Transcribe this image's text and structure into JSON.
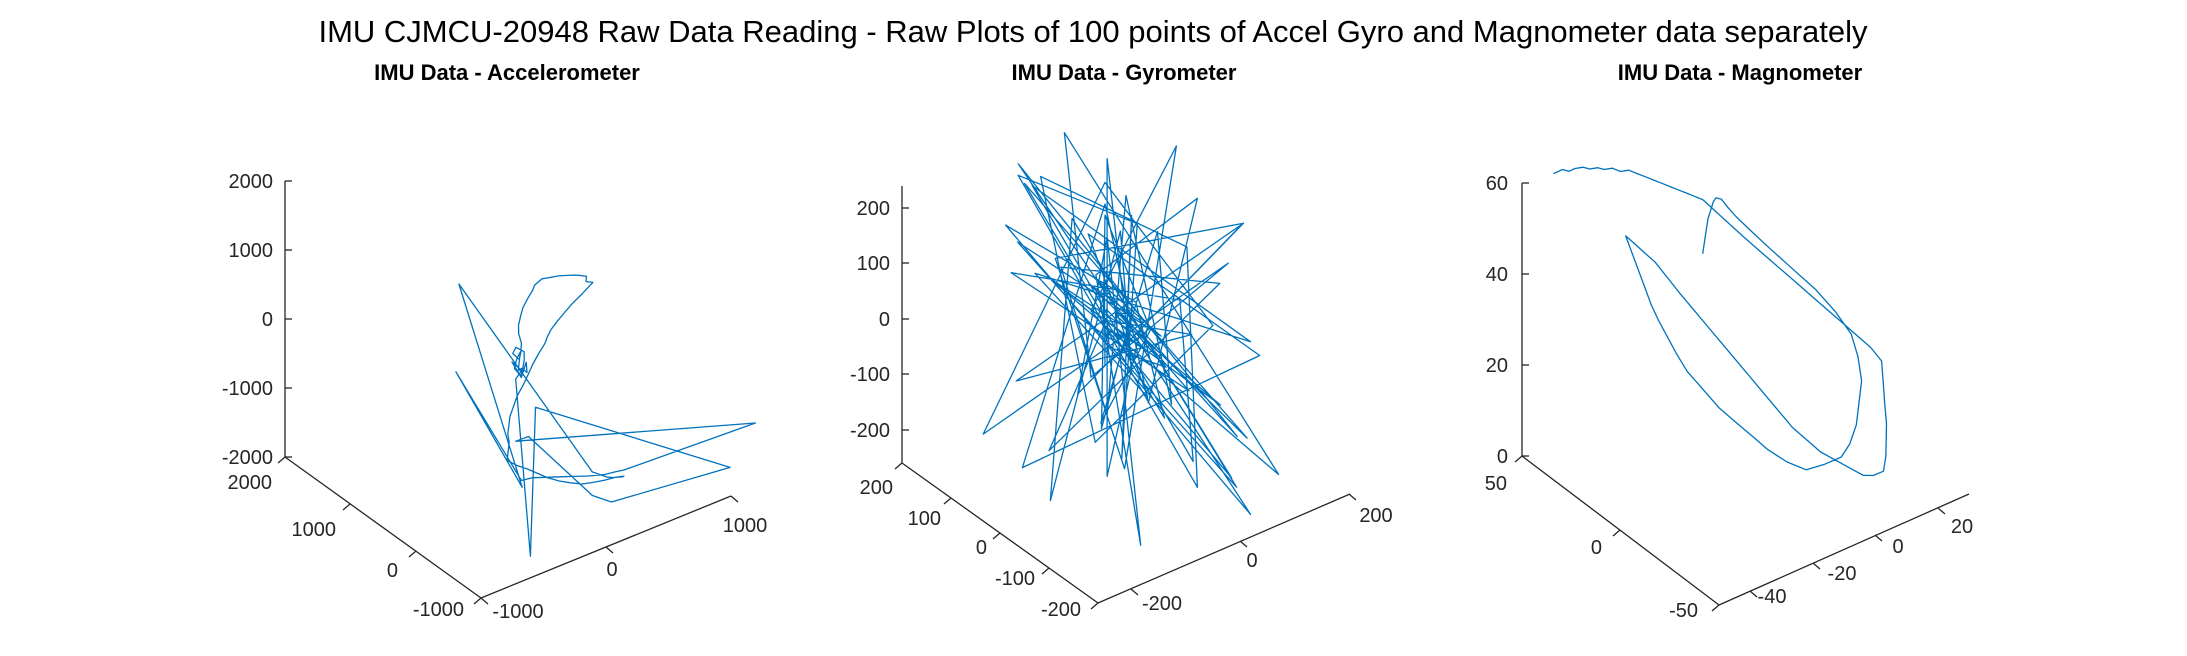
{
  "figure": {
    "title": "IMU CJMCU-20948 Raw Data Reading - Raw Plots of 100 points of Accel Gyro and Magnometer data separately"
  },
  "colors": {
    "series": "#0072BD",
    "axis": "#262626"
  },
  "chart_data": [
    {
      "type": "line",
      "plot_kind": "3d-line",
      "title": "IMU Data - Accelerometer",
      "xlabel": "",
      "ylabel": "",
      "zlabel": "",
      "grid": false,
      "xlim": [
        -1000,
        1000
      ],
      "ylim": [
        -1000,
        2000
      ],
      "zlim": [
        -2000,
        2000
      ],
      "x_ticks": [
        -1000,
        0,
        1000
      ],
      "y_ticks": [
        -1000,
        0,
        1000,
        2000
      ],
      "z_ticks": [
        -2000,
        -1000,
        0,
        1000,
        2000
      ],
      "series": [
        {
          "x": [
            -180,
            -150,
            -120,
            -160,
            -200,
            -170,
            -140,
            -100,
            -80,
            -120,
            -160,
            -130,
            -90,
            -60,
            -40,
            0,
            60,
            120,
            200,
            280,
            340,
            400,
            460,
            520,
            580,
            650,
            720,
            790,
            850,
            900,
            880,
            920,
            860,
            800,
            700,
            620,
            540,
            470,
            420,
            380,
            300,
            220,
            150,
            80,
            0,
            -60,
            -120,
            -160,
            -200,
            -220,
            -260,
            -300,
            -260,
            -200,
            -150,
            -100,
            -40,
            20,
            80,
            140,
            200,
            260,
            300,
            280,
            220,
            180,
            160,
            140,
            120,
            100,
            -550,
            -200,
            -600,
            -180,
            -120,
            -60,
            0,
            60,
            120,
            200,
            260,
            300,
            1300,
            -200,
            -150,
            100,
            150,
            200,
            1150,
            -250,
            -500,
            -200,
            -120,
            -180,
            -220,
            -160,
            -100,
            -120,
            -150,
            -170
          ],
          "y": [
            0,
            40,
            80,
            60,
            20,
            -20,
            10,
            60,
            100,
            150,
            120,
            80,
            130,
            180,
            260,
            340,
            420,
            500,
            580,
            660,
            740,
            800,
            860,
            900,
            940,
            980,
            1000,
            1020,
            1040,
            1020,
            990,
            960,
            930,
            900,
            860,
            820,
            780,
            740,
            700,
            660,
            600,
            540,
            480,
            420,
            360,
            300,
            240,
            180,
            120,
            60,
            0,
            -60,
            -120,
            -180,
            -240,
            -300,
            -360,
            -420,
            -480,
            -540,
            -600,
            -650,
            -700,
            -720,
            -700,
            -680,
            -660,
            -640,
            -620,
            -600,
            200,
            -100,
            150,
            -50,
            -100,
            -200,
            -300,
            -400,
            -500,
            -600,
            -650,
            -700,
            -800,
            0,
            -100,
            -600,
            -650,
            -700,
            -700,
            -400,
            -800,
            0,
            50,
            -30,
            20,
            -10,
            30,
            -20,
            0,
            10
          ],
          "z": [
            0,
            100,
            180,
            120,
            40,
            -60,
            -20,
            60,
            140,
            200,
            160,
            80,
            120,
            200,
            260,
            300,
            340,
            360,
            380,
            380,
            360,
            320,
            280,
            220,
            160,
            100,
            40,
            -20,
            -80,
            -120,
            -160,
            -180,
            -200,
            -220,
            -260,
            -300,
            -340,
            -380,
            -420,
            -460,
            -500,
            -560,
            -620,
            -680,
            -740,
            -800,
            -860,
            -920,
            -980,
            -1040,
            -1100,
            -1160,
            -1220,
            -1280,
            -1340,
            -1400,
            -1450,
            -1480,
            -1500,
            -1480,
            -1450,
            -1420,
            -1400,
            -1380,
            -1360,
            -1340,
            -1320,
            -1300,
            -1280,
            -1260,
            1400,
            -1600,
            200,
            -1550,
            -1520,
            -1490,
            -1460,
            -1430,
            -1400,
            -1370,
            -1340,
            -1310,
            -1300,
            -1000,
            -900,
            -1600,
            -1650,
            -1700,
            -1900,
            -200,
            -1900,
            -100,
            -50,
            50,
            150,
            -100,
            50,
            -50,
            20,
            0
          ]
        }
      ]
    },
    {
      "type": "line",
      "plot_kind": "3d-line",
      "title": "IMU Data - Gyrometer",
      "xlabel": "",
      "ylabel": "",
      "zlabel": "",
      "grid": false,
      "xlim": [
        -300,
        300
      ],
      "ylim": [
        -200,
        200
      ],
      "zlim": [
        -250,
        250
      ],
      "x_ticks": [
        -200,
        0,
        200
      ],
      "y_ticks": [
        -200,
        -100,
        0,
        100,
        200
      ],
      "z_ticks": [
        -200,
        -100,
        0,
        100,
        200
      ],
      "series": [
        {
          "x": [
            0,
            60,
            -80,
            120,
            -140,
            30,
            180,
            -40,
            -120,
            90,
            20,
            -200,
            150,
            -60,
            40,
            200,
            -100,
            -20,
            110,
            -170,
            70,
            10,
            -90,
            160,
            -30,
            50,
            -150,
            130,
            -10,
            80,
            -250,
            0,
            100,
            -60,
            190,
            -120,
            30,
            220,
            -80,
            60,
            -140,
            10,
            170,
            -40,
            90,
            -200,
            120,
            -20,
            40,
            -100,
            250,
            -60,
            20,
            140,
            -180,
            80,
            0,
            -70,
            160,
            -20,
            60,
            -130,
            100,
            30,
            -50,
            210,
            -110,
            40,
            0,
            -160,
            130,
            20,
            -80,
            70,
            -20,
            180,
            -60,
            0,
            90,
            -140,
            50,
            -10,
            120,
            -90,
            30,
            0,
            -40,
            60,
            0,
            -20,
            10,
            30,
            -10,
            0,
            20,
            -30,
            10,
            0,
            -5,
            0
          ],
          "y": [
            0,
            40,
            -60,
            80,
            100,
            -120,
            30,
            140,
            -40,
            -100,
            60,
            120,
            -80,
            20,
            160,
            -140,
            70,
            -30,
            -160,
            100,
            40,
            -70,
            130,
            -110,
            50,
            10,
            -90,
            150,
            -20,
            80,
            -60,
            110,
            -130,
            20,
            60,
            -100,
            170,
            -50,
            30,
            90,
            -150,
            70,
            0,
            -80,
            120,
            40,
            -170,
            60,
            -10,
            100,
            -40,
            140,
            -120,
            10,
            80,
            -60,
            30,
            160,
            -90,
            50,
            -20,
            110,
            -140,
            70,
            0,
            -60,
            130,
            -100,
            40,
            20,
            -80,
            150,
            -30,
            60,
            -110,
            90,
            0,
            -50,
            120,
            -70,
            30,
            10,
            -90,
            70,
            -20,
            40,
            0,
            -30,
            20,
            0,
            10,
            -10,
            5,
            0,
            -5,
            10,
            0,
            -5,
            0,
            0
          ],
          "z": [
            0,
            180,
            -150,
            120,
            280,
            -200,
            90,
            220,
            -120,
            60,
            240,
            -180,
            140,
            -60,
            260,
            -220,
            100,
            40,
            -250,
            200,
            20,
            -100,
            230,
            -160,
            80,
            10,
            -140,
            190,
            -40,
            120,
            -170,
            150,
            -200,
            60,
            250,
            -130,
            30,
            170,
            -90,
            110,
            -230,
            70,
            200,
            -50,
            140,
            -190,
            40,
            160,
            -110,
            90,
            -60,
            210,
            -150,
            20,
            130,
            -80,
            50,
            240,
            -170,
            90,
            0,
            150,
            -210,
            70,
            -30,
            180,
            -120,
            60,
            10,
            -160,
            110,
            30,
            -90,
            200,
            -40,
            80,
            -130,
            50,
            120,
            -70,
            20,
            40,
            -100,
            90,
            -20,
            30,
            0,
            -50,
            40,
            10,
            0,
            -20,
            15,
            5,
            -10,
            20,
            0,
            -10,
            5,
            0
          ]
        }
      ]
    },
    {
      "type": "line",
      "plot_kind": "3d-line",
      "title": "IMU Data - Magnometer",
      "xlabel": "",
      "ylabel": "",
      "zlabel": "",
      "grid": false,
      "xlim": [
        -50,
        30
      ],
      "ylim": [
        -50,
        50
      ],
      "zlim": [
        0,
        60
      ],
      "x_ticks": [
        -40,
        -20,
        0,
        20
      ],
      "y_ticks": [
        -50,
        0,
        50
      ],
      "z_ticks": [
        0,
        20,
        40,
        60
      ],
      "series": [
        {
          "x": [
            -30,
            -26,
            -22,
            -18,
            -14,
            -10,
            -6,
            -2,
            2,
            6,
            10,
            14,
            18,
            22,
            25,
            27,
            26,
            24,
            20,
            16,
            12,
            8,
            4,
            0,
            -3,
            -6,
            -8,
            -10,
            -12,
            -14,
            -16,
            -17,
            -18,
            -19,
            -20,
            -21,
            -22,
            -23,
            -24,
            -25,
            -24,
            -22,
            -20,
            -18,
            -16,
            -14,
            -12,
            -10,
            -8,
            -6,
            -4,
            -2,
            0,
            2,
            4,
            6,
            8,
            10,
            12,
            14,
            16,
            18,
            20,
            22,
            24,
            26,
            25,
            23,
            21,
            19,
            17,
            15,
            13,
            11,
            9,
            7,
            5,
            3,
            1,
            -1,
            -3,
            -5,
            -7,
            -9,
            -11,
            -13,
            -15,
            -17,
            -19,
            -21,
            -23,
            -25,
            -27,
            -29,
            -31,
            -33,
            -35,
            -37,
            -39,
            -40
          ],
          "y": [
            -10,
            -5,
            0,
            5,
            10,
            15,
            20,
            25,
            28,
            30,
            28,
            25,
            20,
            15,
            10,
            5,
            0,
            -5,
            -10,
            -15,
            -18,
            -20,
            -18,
            -15,
            -10,
            -5,
            0,
            5,
            10,
            15,
            20,
            24,
            27,
            30,
            32,
            33,
            34,
            35,
            36,
            37,
            35,
            33,
            30,
            27,
            24,
            20,
            16,
            12,
            8,
            4,
            0,
            -4,
            -8,
            -12,
            -16,
            -20,
            -24,
            -28,
            -30,
            -32,
            -30,
            -27,
            -24,
            -20,
            -16,
            -12,
            -8,
            -4,
            0,
            4,
            8,
            12,
            16,
            20,
            24,
            28,
            30,
            32,
            34,
            36,
            37,
            38,
            39,
            40,
            41,
            42,
            43,
            44,
            45,
            46,
            47,
            48,
            48,
            49,
            49,
            50,
            50,
            50,
            50,
            50
          ],
          "z": [
            58,
            59,
            60,
            59,
            58,
            56,
            53,
            50,
            46,
            42,
            38,
            34,
            30,
            26,
            22,
            18,
            15,
            12,
            10,
            8,
            6,
            5,
            4,
            3,
            4,
            6,
            8,
            10,
            12,
            15,
            18,
            21,
            24,
            27,
            30,
            33,
            36,
            39,
            42,
            45,
            44,
            42,
            40,
            37,
            34,
            31,
            28,
            25,
            22,
            19,
            16,
            13,
            10,
            8,
            6,
            5,
            4,
            3,
            3,
            4,
            6,
            8,
            10,
            12,
            15,
            18,
            20,
            22,
            24,
            26,
            28,
            30,
            32,
            34,
            36,
            38,
            40,
            42,
            44,
            46,
            47,
            48,
            49,
            50,
            51,
            52,
            53,
            54,
            55,
            55,
            56,
            56,
            57,
            57,
            58,
            58,
            58,
            59,
            59,
            59
          ]
        }
      ]
    }
  ]
}
